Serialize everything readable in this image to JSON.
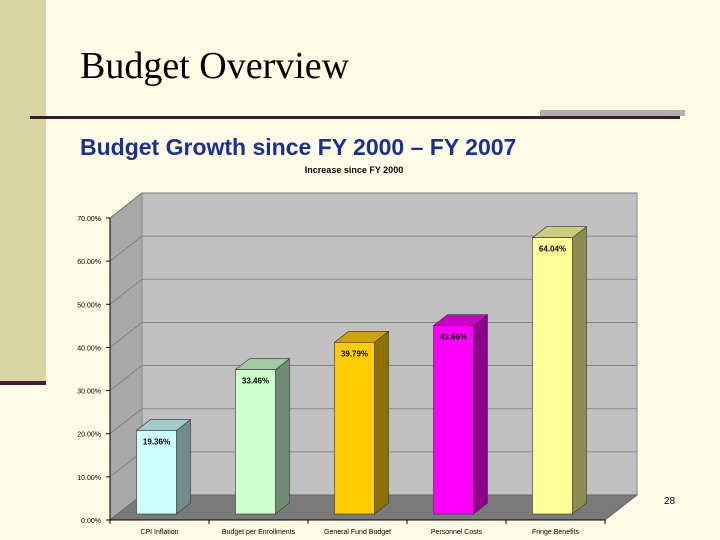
{
  "slide": {
    "title": "Budget Overview",
    "subtitle": "Budget Growth since FY 2000 – FY 2007",
    "page_number": "28"
  },
  "colors": {
    "title": "#000000",
    "subtitle": "#1a2f99",
    "background": "#fffde6",
    "plot_wall": "#c0c0c0",
    "floor": "#7a7a7a"
  },
  "chart_data": {
    "type": "bar",
    "title": "Increase since FY 2000",
    "categories": [
      "CPI Inflation",
      "Budget per Enrollments",
      "General Fund Budget",
      "Personnel Costs",
      "Fringe Benefits"
    ],
    "values": [
      19.36,
      33.46,
      39.79,
      43.66,
      64.04
    ],
    "value_labels": [
      "19.36%",
      "33.46%",
      "39.79%",
      "43.66%",
      "64.04%"
    ],
    "bar_colors": [
      "#ccffff",
      "#ccffcc",
      "#ffcc00",
      "#ff00ff",
      "#ffff99"
    ],
    "y_ticks": [
      "0.00%",
      "10.00%",
      "20.00%",
      "30.00%",
      "40.00%",
      "50.00%",
      "60.00%",
      "70.00%"
    ],
    "ylim": [
      0,
      70
    ],
    "grid": true,
    "legend": "none"
  }
}
